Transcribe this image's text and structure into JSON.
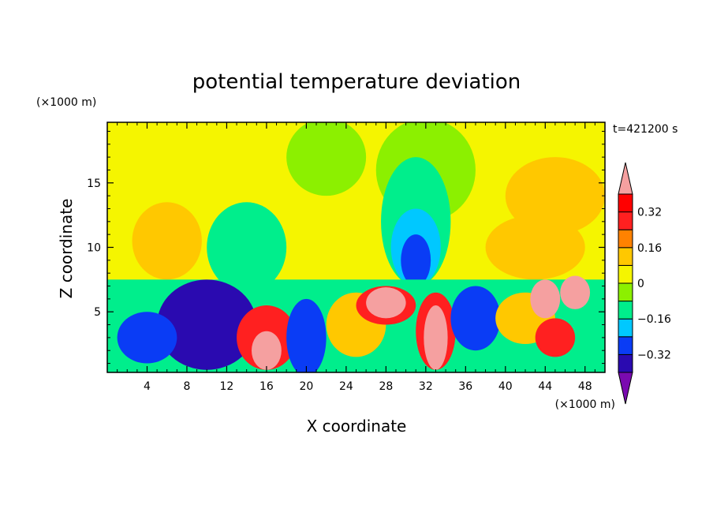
{
  "chart_data": {
    "type": "heatmap",
    "title": "potential temperature deviation",
    "xlabel": "X coordinate",
    "ylabel": "Z coordinate",
    "x_unit": "(×1000 m)",
    "y_unit": "(×1000 m)",
    "time_label": "t=421200 s",
    "xlim": [
      0,
      50
    ],
    "ylim": [
      0.3,
      19.7
    ],
    "x_ticks": [
      4,
      8,
      12,
      16,
      20,
      24,
      28,
      32,
      36,
      40,
      44,
      48
    ],
    "y_ticks": [
      5,
      10,
      15
    ],
    "colorbar": {
      "tick_labels": [
        "0.32",
        "0.16",
        "0",
        "−0.16",
        "−0.32"
      ],
      "tick_values": [
        0.32,
        0.16,
        0,
        -0.16,
        -0.32
      ],
      "levels": [
        -0.4,
        -0.32,
        -0.24,
        -0.16,
        -0.08,
        0,
        0.08,
        0.16,
        0.24,
        0.32,
        0.4
      ],
      "colors": [
        "#7a0ab0",
        "#2a0ab0",
        "#0a3cf5",
        "#00c8ff",
        "#00ee8c",
        "#8cf000",
        "#f5f500",
        "#ffc800",
        "#ff8200",
        "#ff2020",
        "#ff0000",
        "#f5a0a0"
      ],
      "extend": "both"
    },
    "field_regions": [
      {
        "shape": "rect",
        "x": [
          0,
          50
        ],
        "y": [
          0.3,
          19.7
        ],
        "level": 0.05
      },
      {
        "shape": "ellipse",
        "cx": 32,
        "cy": 16,
        "rx": 5,
        "ry": 4,
        "level": -0.05
      },
      {
        "shape": "ellipse",
        "cx": 22,
        "cy": 17,
        "rx": 4,
        "ry": 3,
        "level": -0.05
      },
      {
        "shape": "ellipse",
        "cx": 45,
        "cy": 14,
        "rx": 5,
        "ry": 3,
        "level": 0.1
      },
      {
        "shape": "ellipse",
        "cx": 6,
        "cy": 10.5,
        "rx": 3.5,
        "ry": 3,
        "level": 0.1
      },
      {
        "shape": "ellipse",
        "cx": 14,
        "cy": 10,
        "rx": 4,
        "ry": 3.5,
        "level": -0.1
      },
      {
        "shape": "ellipse",
        "cx": 31,
        "cy": 12,
        "rx": 3.5,
        "ry": 5,
        "level": -0.1
      },
      {
        "shape": "ellipse",
        "cx": 31,
        "cy": 10,
        "rx": 2.5,
        "ry": 3,
        "level": -0.2
      },
      {
        "shape": "ellipse",
        "cx": 31,
        "cy": 9,
        "rx": 1.5,
        "ry": 2,
        "level": -0.3
      },
      {
        "shape": "ellipse",
        "cx": 43,
        "cy": 10,
        "rx": 5,
        "ry": 2.5,
        "level": 0.12
      },
      {
        "shape": "rect",
        "x": [
          0,
          50
        ],
        "y": [
          0.3,
          7.5
        ],
        "level": -0.12
      },
      {
        "shape": "ellipse",
        "cx": 10,
        "cy": 4,
        "rx": 5,
        "ry": 3.5,
        "level": -0.35
      },
      {
        "shape": "ellipse",
        "cx": 4,
        "cy": 3,
        "rx": 3,
        "ry": 2,
        "level": -0.25
      },
      {
        "shape": "ellipse",
        "cx": 16,
        "cy": 3,
        "rx": 3,
        "ry": 2.5,
        "level": 0.25
      },
      {
        "shape": "ellipse",
        "cx": 16,
        "cy": 2,
        "rx": 1.5,
        "ry": 1.5,
        "level": 0.45
      },
      {
        "shape": "ellipse",
        "cx": 20,
        "cy": 3,
        "rx": 2,
        "ry": 3,
        "level": -0.28
      },
      {
        "shape": "ellipse",
        "cx": 25,
        "cy": 4,
        "rx": 3,
        "ry": 2.5,
        "level": 0.12
      },
      {
        "shape": "ellipse",
        "cx": 28,
        "cy": 5.5,
        "rx": 3,
        "ry": 1.5,
        "level": 0.3
      },
      {
        "shape": "ellipse",
        "cx": 28,
        "cy": 5.7,
        "rx": 2,
        "ry": 1.2,
        "level": 0.45
      },
      {
        "shape": "ellipse",
        "cx": 33,
        "cy": 3.5,
        "rx": 2,
        "ry": 3,
        "level": 0.3
      },
      {
        "shape": "ellipse",
        "cx": 33,
        "cy": 3,
        "rx": 1.2,
        "ry": 2.5,
        "level": 0.45
      },
      {
        "shape": "ellipse",
        "cx": 37,
        "cy": 4.5,
        "rx": 2.5,
        "ry": 2.5,
        "level": -0.28
      },
      {
        "shape": "ellipse",
        "cx": 42,
        "cy": 4.5,
        "rx": 3,
        "ry": 2,
        "level": 0.15
      },
      {
        "shape": "ellipse",
        "cx": 44,
        "cy": 6,
        "rx": 1.5,
        "ry": 1.5,
        "level": 0.45
      },
      {
        "shape": "ellipse",
        "cx": 47,
        "cy": 6.5,
        "rx": 1.5,
        "ry": 1.3,
        "level": 0.45
      },
      {
        "shape": "ellipse",
        "cx": 45,
        "cy": 3,
        "rx": 2,
        "ry": 1.5,
        "level": 0.3
      }
    ]
  }
}
